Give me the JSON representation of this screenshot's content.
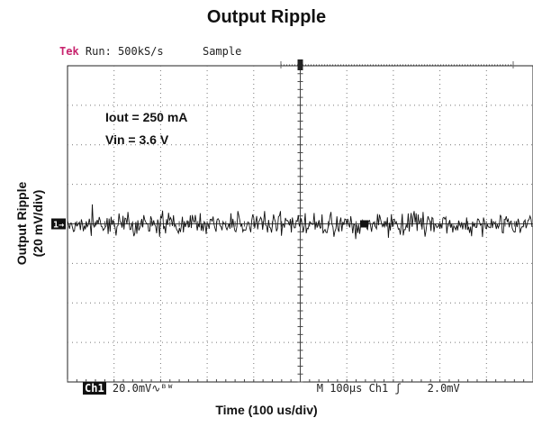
{
  "chart_data": {
    "type": "line",
    "title": "Output Ripple",
    "xlabel": "Time (100 us/div)",
    "ylabel_lines": [
      "Output Ripple",
      "(20 mV/div)"
    ],
    "x_divisions": 10,
    "y_divisions": 8,
    "series": [
      {
        "name": "Ch1",
        "color": "#111111",
        "mean_div": 0,
        "peak_to_peak_div": 0.7,
        "noise": "random high-frequency"
      }
    ],
    "annotations": [
      "Iout = 250 mA",
      "Vin = 3.6 V"
    ],
    "grid": true
  },
  "scope": {
    "brand": "Tek",
    "run": "Run: 500kS/s",
    "mode": "Sample",
    "channel_badge": "Ch1",
    "channel_scale": "20.0mV",
    "bw_symbol": "∿ᴮᵂ",
    "timebase": "M 100µs",
    "trigger_source": "Ch1",
    "trigger_slope": "ʃ",
    "trigger_level": "2.0mV",
    "ch1_marker": "1→"
  }
}
